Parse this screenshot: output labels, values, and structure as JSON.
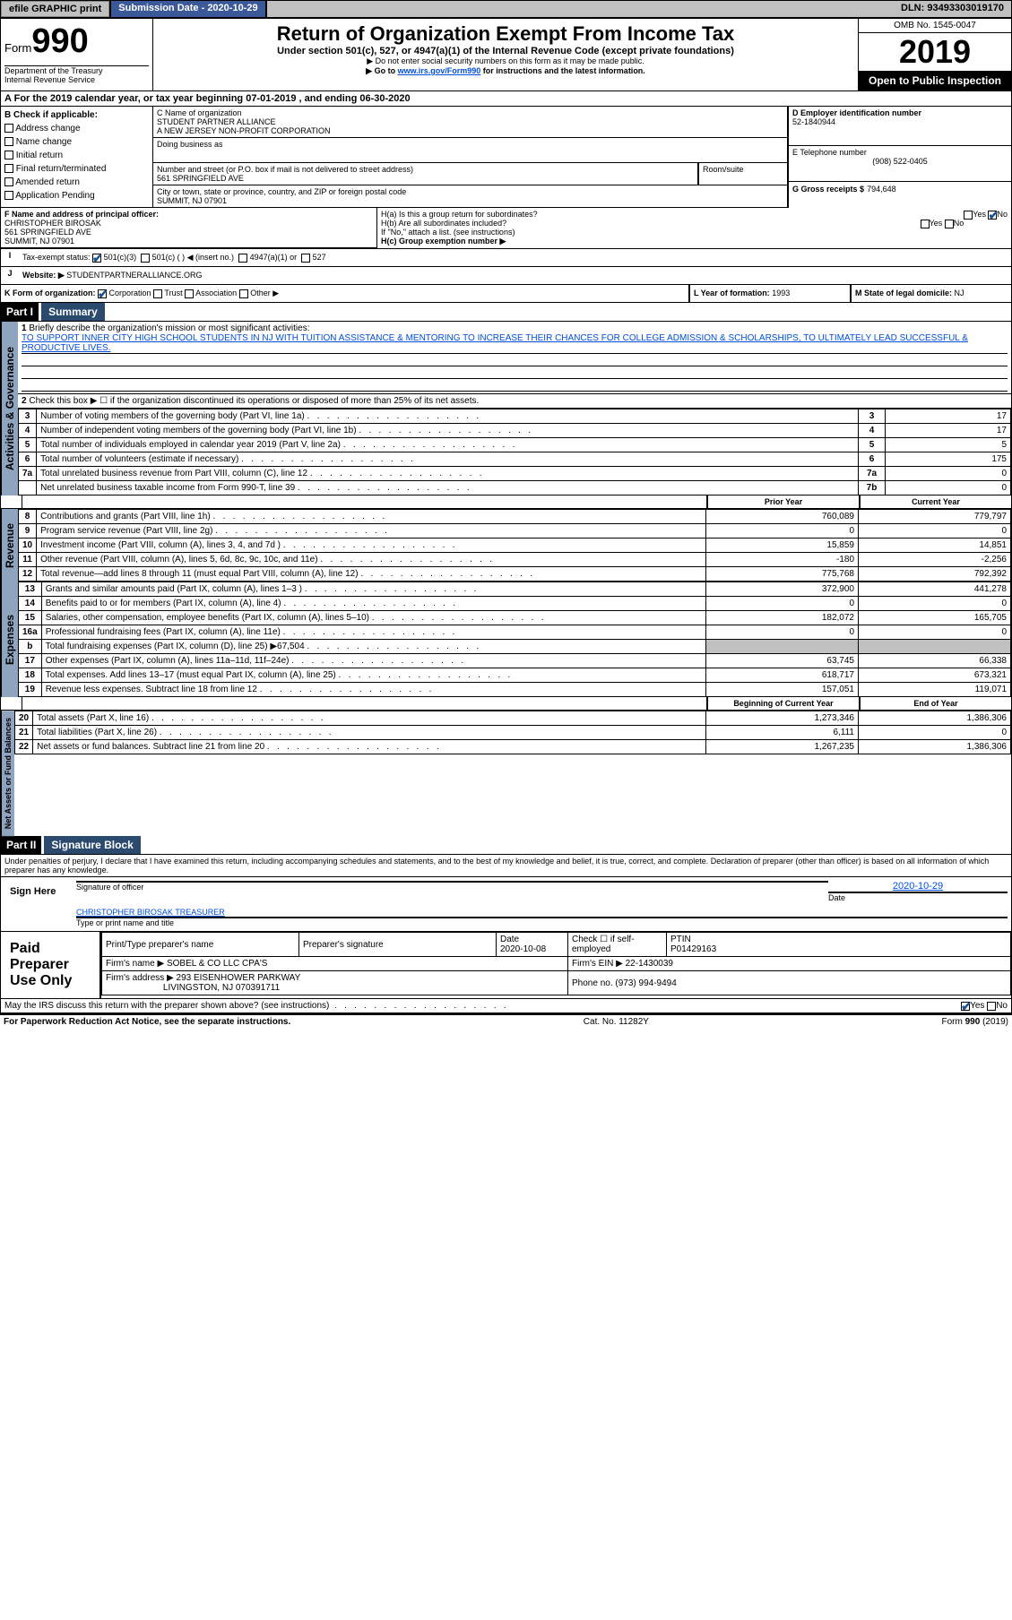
{
  "header": {
    "efile": "efile GRAPHIC print",
    "submission_label": "Submission Date - 2020-10-29",
    "dln": "DLN: 93493303019170"
  },
  "title": {
    "form": "Form",
    "num": "990",
    "main": "Return of Organization Exempt From Income Tax",
    "sub": "Under section 501(c), 527, or 4947(a)(1) of the Internal Revenue Code (except private foundations)",
    "sub2": "▶ Do not enter social security numbers on this form as it may be made public.",
    "sub3_pre": "▶ Go to ",
    "sub3_link": "www.irs.gov/Form990",
    "sub3_post": " for instructions and the latest information.",
    "dept": "Department of the Treasury",
    "irs": "Internal Revenue Service",
    "omb": "OMB No. 1545-0047",
    "year": "2019",
    "open": "Open to Public Inspection"
  },
  "taxyear": {
    "line_a": "For the 2019 calendar year, or tax year beginning 07-01-2019",
    "line_b": ", and ending 06-30-2020"
  },
  "b": {
    "hdr": "B Check if applicable:",
    "addr": "Address change",
    "name": "Name change",
    "init": "Initial return",
    "final": "Final return/terminated",
    "amend": "Amended return",
    "app": "Application Pending"
  },
  "c": {
    "label": "C Name of organization",
    "org1": "STUDENT PARTNER ALLIANCE",
    "org2": "A NEW JERSEY NON-PROFIT CORPORATION",
    "dba": "Doing business as",
    "addr_label": "Number and street (or P.O. box if mail is not delivered to street address)",
    "room": "Room/suite",
    "addr": "561 SPRINGFIELD AVE",
    "city_label": "City or town, state or province, country, and ZIP or foreign postal code",
    "city": "SUMMIT, NJ  07901"
  },
  "d": {
    "label": "D Employer identification number",
    "val": "52-1840944"
  },
  "e": {
    "label": "E Telephone number",
    "val": "(908) 522-0405"
  },
  "g": {
    "label": "G Gross receipts $",
    "val": "794,648"
  },
  "f": {
    "label": "F  Name and address of principal officer:",
    "name": "CHRISTOPHER BIROSAK",
    "addr": "561 SPRINGFIELD AVE",
    "city": "SUMMIT, NJ  07901"
  },
  "h": {
    "a": "H(a)  Is this a group return for subordinates?",
    "b": "H(b)  Are all subordinates included?",
    "note": "If \"No,\" attach a list. (see instructions)",
    "c": "H(c)  Group exemption number ▶",
    "yes": "Yes",
    "no": "No"
  },
  "i": {
    "label": "Tax-exempt status:",
    "c3": "501(c)(3)",
    "c": "501(c) (  ) ◀ (insert no.)",
    "a1": "4947(a)(1) or",
    "s527": "527"
  },
  "j": {
    "label": "Website: ▶",
    "val": "STUDENTPARTNERALLIANCE.ORG"
  },
  "k": {
    "label": "K Form of organization:",
    "corp": "Corporation",
    "trust": "Trust",
    "assoc": "Association",
    "other": "Other ▶"
  },
  "l": {
    "label": "L Year of formation:",
    "val": "1993"
  },
  "m": {
    "label": "M State of legal domicile:",
    "val": "NJ"
  },
  "part1": {
    "hdr": "Part I",
    "title": "Summary",
    "line1": "Briefly describe the organization's mission or most significant activities:",
    "mission": "TO SUPPORT INNER CITY HIGH SCHOOL STUDENTS IN NJ WITH TUITION ASSISTANCE & MENTORING TO INCREASE THEIR CHANCES FOR COLLEGE ADMISSION & SCHOLARSHIPS, TO ULTIMATELY LEAD SUCCESSFUL & PRODUCTIVE LIVES.",
    "line2": "Check this box ▶ ☐ if the organization discontinued its operations or disposed of more than 25% of its net assets.",
    "tabs": {
      "ag": "Activities & Governance",
      "rev": "Revenue",
      "exp": "Expenses",
      "na": "Net Assets or Fund Balances"
    },
    "rows": [
      {
        "n": "3",
        "t": "Number of voting members of the governing body (Part VI, line 1a)",
        "c": "3",
        "v": "17"
      },
      {
        "n": "4",
        "t": "Number of independent voting members of the governing body (Part VI, line 1b)",
        "c": "4",
        "v": "17"
      },
      {
        "n": "5",
        "t": "Total number of individuals employed in calendar year 2019 (Part V, line 2a)",
        "c": "5",
        "v": "5"
      },
      {
        "n": "6",
        "t": "Total number of volunteers (estimate if necessary)",
        "c": "6",
        "v": "175"
      },
      {
        "n": "7a",
        "t": "Total unrelated business revenue from Part VIII, column (C), line 12",
        "c": "7a",
        "v": "0"
      },
      {
        "n": "",
        "t": "Net unrelated business taxable income from Form 990-T, line 39",
        "c": "7b",
        "v": "0"
      }
    ],
    "py": "Prior Year",
    "cy": "Current Year",
    "rev_rows": [
      {
        "n": "8",
        "t": "Contributions and grants (Part VIII, line 1h)",
        "py": "760,089",
        "cy": "779,797"
      },
      {
        "n": "9",
        "t": "Program service revenue (Part VIII, line 2g)",
        "py": "0",
        "cy": "0"
      },
      {
        "n": "10",
        "t": "Investment income (Part VIII, column (A), lines 3, 4, and 7d )",
        "py": "15,859",
        "cy": "14,851"
      },
      {
        "n": "11",
        "t": "Other revenue (Part VIII, column (A), lines 5, 6d, 8c, 9c, 10c, and 11e)",
        "py": "-180",
        "cy": "-2,256"
      },
      {
        "n": "12",
        "t": "Total revenue—add lines 8 through 11 (must equal Part VIII, column (A), line 12)",
        "py": "775,768",
        "cy": "792,392"
      }
    ],
    "exp_rows": [
      {
        "n": "13",
        "t": "Grants and similar amounts paid (Part IX, column (A), lines 1–3 )",
        "py": "372,900",
        "cy": "441,278"
      },
      {
        "n": "14",
        "t": "Benefits paid to or for members (Part IX, column (A), line 4)",
        "py": "0",
        "cy": "0"
      },
      {
        "n": "15",
        "t": "Salaries, other compensation, employee benefits (Part IX, column (A), lines 5–10)",
        "py": "182,072",
        "cy": "165,705"
      },
      {
        "n": "16a",
        "t": "Professional fundraising fees (Part IX, column (A), line 11e)",
        "py": "0",
        "cy": "0"
      },
      {
        "n": "b",
        "t": "Total fundraising expenses (Part IX, column (D), line 25) ▶67,504",
        "py": "",
        "cy": "",
        "grey": true
      },
      {
        "n": "17",
        "t": "Other expenses (Part IX, column (A), lines 11a–11d, 11f–24e)",
        "py": "63,745",
        "cy": "66,338"
      },
      {
        "n": "18",
        "t": "Total expenses. Add lines 13–17 (must equal Part IX, column (A), line 25)",
        "py": "618,717",
        "cy": "673,321"
      },
      {
        "n": "19",
        "t": "Revenue less expenses. Subtract line 18 from line 12",
        "py": "157,051",
        "cy": "119,071"
      }
    ],
    "bcy": "Beginning of Current Year",
    "ecy": "End of Year",
    "na_rows": [
      {
        "n": "20",
        "t": "Total assets (Part X, line 16)",
        "py": "1,273,346",
        "cy": "1,386,306"
      },
      {
        "n": "21",
        "t": "Total liabilities (Part X, line 26)",
        "py": "6,111",
        "cy": "0"
      },
      {
        "n": "22",
        "t": "Net assets or fund balances. Subtract line 21 from line 20",
        "py": "1,267,235",
        "cy": "1,386,306"
      }
    ]
  },
  "part2": {
    "hdr": "Part II",
    "title": "Signature Block",
    "decl": "Under penalties of perjury, I declare that I have examined this return, including accompanying schedules and statements, and to the best of my knowledge and belief, it is true, correct, and complete. Declaration of preparer (other than officer) is based on all information of which preparer has any knowledge.",
    "sign": "Sign Here",
    "sig_officer": "Signature of officer",
    "date": "Date",
    "sig_date": "2020-10-29",
    "officer": "CHRISTOPHER BIROSAK  TREASURER",
    "type_name": "Type or print name and title",
    "paid": "Paid Preparer Use Only",
    "prep_name": "Print/Type preparer's name",
    "prep_sig": "Preparer's signature",
    "prep_date_lbl": "Date",
    "prep_date": "2020-10-08",
    "check_self": "Check ☐ if self-employed",
    "ptin_lbl": "PTIN",
    "ptin": "P01429163",
    "firm_name_lbl": "Firm's name    ▶",
    "firm_name": "SOBEL & CO LLC CPA'S",
    "firm_ein_lbl": "Firm's EIN ▶",
    "firm_ein": "22-1430039",
    "firm_addr_lbl": "Firm's address ▶",
    "firm_addr1": "293 EISENHOWER PARKWAY",
    "firm_addr2": "LIVINGSTON, NJ  070391711",
    "phone_lbl": "Phone no.",
    "phone": "(973) 994-9494",
    "discuss": "May the IRS discuss this return with the preparer shown above? (see instructions)"
  },
  "footer": {
    "pra": "For Paperwork Reduction Act Notice, see the separate instructions.",
    "cat": "Cat. No. 11282Y",
    "form": "Form 990 (2019)"
  }
}
